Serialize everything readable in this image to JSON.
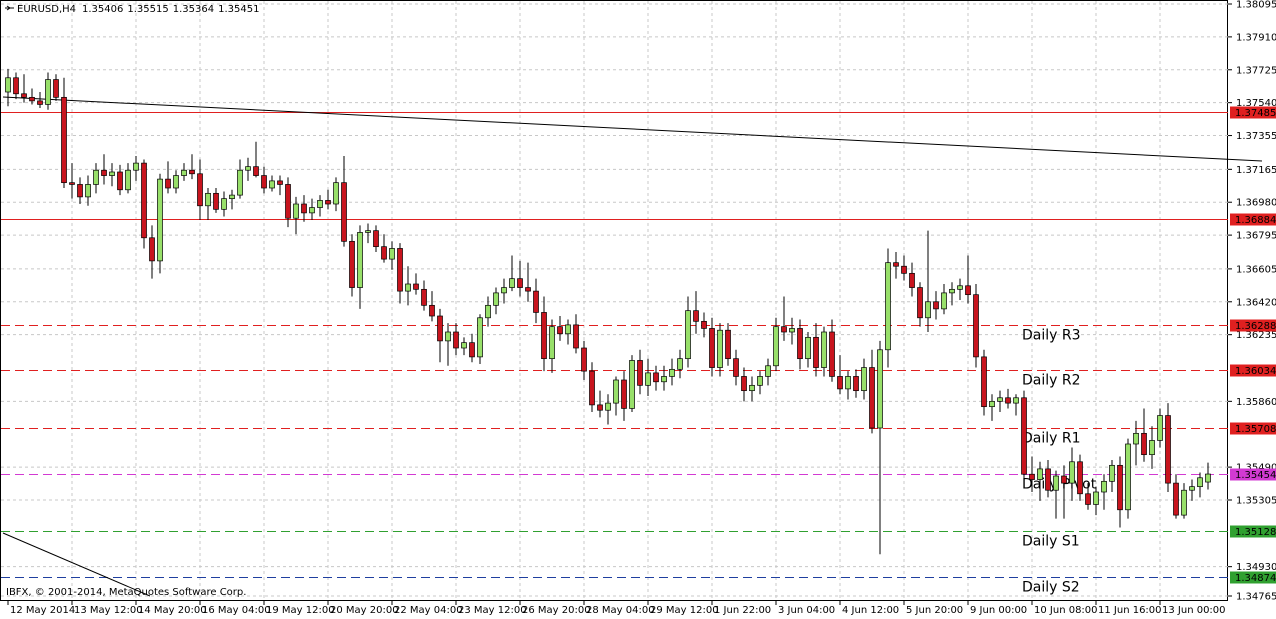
{
  "header": {
    "symbol": "EURUSD,H4"
  },
  "footer": {
    "copyright": "IBFX, © 2001-2014, MetaQuotes Software Corp."
  },
  "chart_data": {
    "type": "candlestick",
    "up_color": "#98e06a",
    "down_color": "#c8141e",
    "outline_color": "#000000",
    "grid": true,
    "ylim": [
      1.34765,
      1.38095
    ],
    "yticks": [
      1.38095,
      {
        "value": 1.3791,
        "label": "1.37910"
      },
      1.37725,
      {
        "value": 1.3754,
        "label": "1.37540"
      },
      1.37355,
      1.37165,
      {
        "value": 1.3698,
        "label": "1.36980"
      },
      1.36795,
      1.36605,
      {
        "value": 1.3642,
        "label": "1.36420"
      },
      1.36235,
      {
        "value": 1.3586,
        "label": "1.35860"
      },
      {
        "value": 1.3549,
        "label": "1.35490"
      },
      1.35305,
      {
        "value": 1.3493,
        "label": "1.34930"
      },
      1.34765
    ],
    "categories": [
      "12 May 2014",
      null,
      null,
      null,
      null,
      null,
      null,
      null,
      "13 May 12:00",
      null,
      null,
      null,
      null,
      null,
      null,
      null,
      "14 May 20:00",
      null,
      null,
      null,
      null,
      null,
      null,
      null,
      "16 May 04:00",
      null,
      null,
      null,
      null,
      null,
      null,
      null,
      "19 May 12:00",
      null,
      null,
      null,
      null,
      null,
      null,
      null,
      "20 May 20:00",
      null,
      null,
      null,
      null,
      null,
      null,
      null,
      "22 May 04:00",
      null,
      null,
      null,
      null,
      null,
      null,
      null,
      "23 May 12:00",
      null,
      null,
      null,
      null,
      null,
      null,
      null,
      "26 May 20:00",
      null,
      null,
      null,
      null,
      null,
      null,
      null,
      "28 May 04:00",
      null,
      null,
      null,
      null,
      null,
      null,
      null,
      "29 May 12:00",
      null,
      null,
      null,
      null,
      null,
      null,
      null,
      "1 Jun 22:00",
      null,
      null,
      null,
      null,
      null,
      null,
      null,
      "3 Jun 04:00",
      null,
      null,
      null,
      null,
      null,
      null,
      null,
      "4 Jun 12:00",
      null,
      null,
      null,
      null,
      null,
      null,
      null,
      "5 Jun 20:00",
      null,
      null,
      null,
      null,
      null,
      null,
      null,
      "9 Jun 00:00",
      null,
      null,
      null,
      null,
      null,
      null,
      null,
      "10 Jun 08:00",
      null,
      null,
      null,
      null,
      null,
      null,
      null,
      "11 Jun 16:00",
      null,
      null,
      null,
      null,
      null,
      null,
      null,
      "13 Jun 00:00",
      null,
      null,
      null,
      null,
      null,
      null
    ],
    "open": [
      1.376,
      1.3768,
      1.3759,
      1.3757,
      1.3755,
      1.3753,
      1.3767,
      1.3757,
      1.3709,
      1.3708,
      1.3701,
      1.3708,
      1.3716,
      1.3713,
      1.3715,
      1.3705,
      1.3716,
      1.372,
      1.3678,
      1.3665,
      1.3711,
      1.3706,
      1.3713,
      1.3716,
      1.3714,
      1.3696,
      1.3703,
      1.3694,
      1.37,
      1.3702,
      1.3716,
      1.3718,
      1.3713,
      1.3706,
      1.371,
      1.3708,
      1.3689,
      1.3697,
      1.3692,
      1.3695,
      1.3699,
      1.3697,
      1.3709,
      1.3676,
      1.365,
      1.3681,
      1.3682,
      1.3673,
      1.3666,
      1.3672,
      1.3648,
      1.3652,
      1.3649,
      1.364,
      1.3634,
      1.362,
      1.3625,
      1.3616,
      1.3619,
      1.3611,
      1.3633,
      1.364,
      1.3647,
      1.365,
      1.3655,
      1.365,
      1.3648,
      1.3636,
      1.361,
      1.3628,
      1.3624,
      1.3629,
      1.3616,
      1.3603,
      1.3584,
      1.3581,
      1.3585,
      1.3598,
      1.3582,
      1.3609,
      1.3595,
      1.3602,
      1.3597,
      1.36,
      1.3604,
      1.361,
      1.3637,
      1.3631,
      1.3627,
      1.3605,
      1.3626,
      1.361,
      1.36,
      1.3592,
      1.3595,
      1.36,
      1.3606,
      1.3628,
      1.3625,
      1.3627,
      1.361,
      1.3622,
      1.3605,
      1.3625,
      1.36,
      1.3593,
      1.36,
      1.3592,
      1.3605,
      1.3571,
      1.3615,
      1.3664,
      1.3662,
      1.3658,
      1.365,
      1.3633,
      1.3642,
      1.3638,
      1.3647,
      1.3649,
      1.3651,
      1.3646,
      1.3611,
      1.3583,
      1.3586,
      1.3588,
      1.3585,
      1.3588,
      1.3545,
      1.3542,
      1.3548,
      1.3536,
      1.3544,
      1.354,
      1.3552,
      1.3534,
      1.3528,
      1.3535,
      1.3541,
      1.355,
      1.3525,
      1.3562,
      1.3568,
      1.3556,
      1.3564,
      1.3578,
      1.354,
      1.3522,
      1.3536,
      1.3538,
      1.35406
    ],
    "high": [
      1.3773,
      1.3771,
      1.377,
      1.3762,
      1.376,
      1.3771,
      1.377,
      1.3768,
      1.372,
      1.3712,
      1.3713,
      1.372,
      1.3725,
      1.372,
      1.3719,
      1.372,
      1.3724,
      1.3722,
      1.3685,
      1.3714,
      1.3721,
      1.3716,
      1.372,
      1.3725,
      1.3722,
      1.3706,
      1.3706,
      1.3704,
      1.3705,
      1.3722,
      1.3723,
      1.3732,
      1.3718,
      1.3713,
      1.3713,
      1.3712,
      1.3701,
      1.3702,
      1.37,
      1.3702,
      1.3705,
      1.3712,
      1.3724,
      1.368,
      1.3685,
      1.3686,
      1.3685,
      1.368,
      1.3676,
      1.3675,
      1.3662,
      1.3658,
      1.3654,
      1.3648,
      1.3638,
      1.363,
      1.363,
      1.3622,
      1.3624,
      1.3635,
      1.3645,
      1.365,
      1.3655,
      1.3668,
      1.3665,
      1.3664,
      1.3655,
      1.3645,
      1.3632,
      1.3634,
      1.3632,
      1.3635,
      1.362,
      1.3608,
      1.3592,
      1.359,
      1.36,
      1.3603,
      1.3612,
      1.3615,
      1.361,
      1.3606,
      1.3606,
      1.361,
      1.3615,
      1.3645,
      1.3648,
      1.3636,
      1.3633,
      1.363,
      1.363,
      1.3615,
      1.3605,
      1.36,
      1.3603,
      1.361,
      1.3633,
      1.3645,
      1.3633,
      1.3632,
      1.3625,
      1.363,
      1.3628,
      1.3632,
      1.3612,
      1.3603,
      1.3604,
      1.361,
      1.3615,
      1.362,
      1.3672,
      1.367,
      1.3668,
      1.3664,
      1.3653,
      1.3682,
      1.3648,
      1.3652,
      1.3653,
      1.3655,
      1.3668,
      1.3652,
      1.3615,
      1.359,
      1.3592,
      1.3593,
      1.359,
      1.3592,
      1.3555,
      1.3552,
      1.3553,
      1.3547,
      1.355,
      1.356,
      1.3556,
      1.354,
      1.3538,
      1.3545,
      1.3553,
      1.3555,
      1.3565,
      1.3575,
      1.3582,
      1.3572,
      1.3582,
      1.3585,
      1.3545,
      1.354,
      1.3542,
      1.3546,
      1.35515
    ],
    "low": [
      1.3752,
      1.3756,
      1.3754,
      1.3753,
      1.3751,
      1.375,
      1.3755,
      1.3706,
      1.37,
      1.3697,
      1.3696,
      1.3703,
      1.3708,
      1.3707,
      1.3702,
      1.3703,
      1.371,
      1.3672,
      1.3655,
      1.3658,
      1.3703,
      1.3703,
      1.371,
      1.3711,
      1.3688,
      1.3688,
      1.3692,
      1.369,
      1.3694,
      1.37,
      1.371,
      1.3712,
      1.3703,
      1.3704,
      1.3702,
      1.3684,
      1.368,
      1.3687,
      1.3688,
      1.369,
      1.3694,
      1.3693,
      1.3673,
      1.3645,
      1.3638,
      1.3675,
      1.367,
      1.3664,
      1.366,
      1.3641,
      1.364,
      1.3646,
      1.3637,
      1.3631,
      1.3608,
      1.3606,
      1.3612,
      1.3612,
      1.3608,
      1.3607,
      1.3628,
      1.3635,
      1.3641,
      1.3648,
      1.3645,
      1.3642,
      1.363,
      1.3603,
      1.3602,
      1.362,
      1.3618,
      1.3613,
      1.3598,
      1.358,
      1.3577,
      1.3573,
      1.3578,
      1.3575,
      1.358,
      1.359,
      1.3589,
      1.3592,
      1.3592,
      1.3595,
      1.3599,
      1.3605,
      1.3624,
      1.3622,
      1.36,
      1.36,
      1.3606,
      1.3595,
      1.3586,
      1.3586,
      1.359,
      1.3595,
      1.3603,
      1.362,
      1.3618,
      1.3604,
      1.3605,
      1.36,
      1.36,
      1.3597,
      1.359,
      1.3587,
      1.3588,
      1.3587,
      1.3568,
      1.35,
      1.3605,
      1.3655,
      1.3654,
      1.3645,
      1.3628,
      1.3625,
      1.3632,
      1.3635,
      1.364,
      1.3643,
      1.3641,
      1.3605,
      1.3578,
      1.3575,
      1.358,
      1.3582,
      1.3578,
      1.354,
      1.3535,
      1.353,
      1.3532,
      1.352,
      1.352,
      1.353,
      1.353,
      1.3525,
      1.3522,
      1.3525,
      1.3535,
      1.3515,
      1.352,
      1.355,
      1.3552,
      1.3548,
      1.356,
      1.3535,
      1.352,
      1.352,
      1.353,
      1.3532,
      1.35364
    ],
    "close": [
      1.3768,
      1.3759,
      1.3757,
      1.3755,
      1.3753,
      1.3767,
      1.3757,
      1.3709,
      1.3708,
      1.3701,
      1.3708,
      1.3716,
      1.3713,
      1.3715,
      1.3705,
      1.3716,
      1.372,
      1.3678,
      1.3665,
      1.3711,
      1.3706,
      1.3713,
      1.3716,
      1.3714,
      1.3696,
      1.3703,
      1.3694,
      1.37,
      1.3702,
      1.3716,
      1.3718,
      1.3713,
      1.3706,
      1.371,
      1.3708,
      1.3689,
      1.3697,
      1.3692,
      1.3695,
      1.3699,
      1.3697,
      1.3709,
      1.3676,
      1.365,
      1.3681,
      1.3682,
      1.3673,
      1.3666,
      1.3672,
      1.3648,
      1.3652,
      1.3649,
      1.364,
      1.3634,
      1.362,
      1.3625,
      1.3616,
      1.3619,
      1.3611,
      1.3633,
      1.364,
      1.3647,
      1.365,
      1.3655,
      1.365,
      1.3648,
      1.3636,
      1.361,
      1.3628,
      1.3624,
      1.3629,
      1.3616,
      1.3603,
      1.3584,
      1.3581,
      1.3585,
      1.3598,
      1.3582,
      1.3609,
      1.3595,
      1.3602,
      1.3597,
      1.36,
      1.3604,
      1.361,
      1.3637,
      1.3631,
      1.3627,
      1.3605,
      1.3626,
      1.361,
      1.36,
      1.3592,
      1.3595,
      1.36,
      1.3606,
      1.3628,
      1.3625,
      1.3627,
      1.361,
      1.3622,
      1.3605,
      1.3625,
      1.36,
      1.3593,
      1.36,
      1.3592,
      1.3605,
      1.3571,
      1.3615,
      1.3664,
      1.3662,
      1.3658,
      1.365,
      1.3633,
      1.3642,
      1.3638,
      1.3647,
      1.3649,
      1.3651,
      1.3646,
      1.3611,
      1.3583,
      1.3586,
      1.3588,
      1.3585,
      1.3588,
      1.3545,
      1.3542,
      1.3548,
      1.3536,
      1.3544,
      1.354,
      1.3552,
      1.3534,
      1.3528,
      1.3535,
      1.3541,
      1.355,
      1.3525,
      1.3562,
      1.3568,
      1.3556,
      1.3564,
      1.3578,
      1.354,
      1.3522,
      1.3536,
      1.3538,
      1.3543,
      1.35451
    ],
    "levels": [
      {
        "value": 1.37485,
        "color": "#e02020",
        "box_color": "#e02020",
        "style": "solid"
      },
      {
        "value": 1.36884,
        "color": "#e02020",
        "box_color": "#e02020",
        "style": "solid"
      },
      {
        "value": 1.36288,
        "name": "Daily R3",
        "color": "#e02020",
        "box_color": "#e02020",
        "style": "dashed"
      },
      {
        "value": 1.36034,
        "name": "Daily R2",
        "color": "#e02020",
        "box_color": "#e02020",
        "style": "dashed"
      },
      {
        "value": 1.35708,
        "name": "Daily R1",
        "color": "#e02020",
        "box_color": "#e02020",
        "style": "dashed"
      },
      {
        "value": 1.35454,
        "name": "Daily Pivot",
        "color": "#d23ad2",
        "box_color": "#d23ad2",
        "style": "dashed"
      },
      {
        "value": 1.35128,
        "name": "Daily S1",
        "color": "#30a030",
        "box_color": "#30a030",
        "text_color": "#1c2470",
        "style": "dashed"
      },
      {
        "value": 1.34874,
        "name": "Daily S2",
        "color": "#1f3f9f",
        "box_color": "#30a030",
        "text_color": "#1c2470",
        "style": "dashed"
      }
    ]
  }
}
